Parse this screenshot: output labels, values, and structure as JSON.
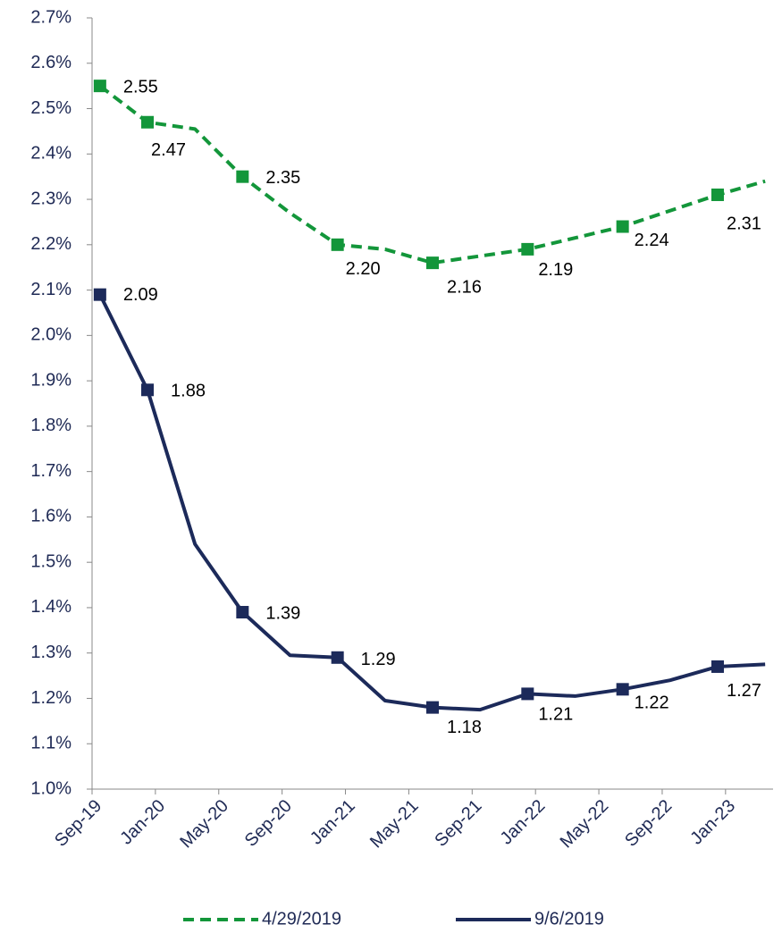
{
  "chart_data": {
    "type": "line",
    "x": [
      "2019-09",
      "2019-12",
      "2020-03",
      "2020-06",
      "2020-09",
      "2020-12",
      "2021-03",
      "2021-06",
      "2021-09",
      "2021-12",
      "2022-03",
      "2022-06",
      "2022-09",
      "2022-12",
      "2023-03"
    ],
    "xlim": [
      "2019-09",
      "2023-04"
    ],
    "xticks": [
      {
        "value": "2019-09",
        "label": "Sep-19"
      },
      {
        "value": "2020-01",
        "label": "Jan-20"
      },
      {
        "value": "2020-05",
        "label": "May-20"
      },
      {
        "value": "2020-09",
        "label": "Sep-20"
      },
      {
        "value": "2021-01",
        "label": "Jan-21"
      },
      {
        "value": "2021-05",
        "label": "May-21"
      },
      {
        "value": "2021-09",
        "label": "Sep-21"
      },
      {
        "value": "2022-01",
        "label": "Jan-22"
      },
      {
        "value": "2022-05",
        "label": "May-22"
      },
      {
        "value": "2022-09",
        "label": "Sep-22"
      },
      {
        "value": "2023-01",
        "label": "Jan-23"
      }
    ],
    "ylim": [
      1.0,
      2.7
    ],
    "yticks": [
      {
        "value": 1.0,
        "label": "1.0%"
      },
      {
        "value": 1.1,
        "label": "1.1%"
      },
      {
        "value": 1.2,
        "label": "1.2%"
      },
      {
        "value": 1.3,
        "label": "1.3%"
      },
      {
        "value": 1.4,
        "label": "1.4%"
      },
      {
        "value": 1.5,
        "label": "1.5%"
      },
      {
        "value": 1.6,
        "label": "1.6%"
      },
      {
        "value": 1.7,
        "label": "1.7%"
      },
      {
        "value": 1.8,
        "label": "1.8%"
      },
      {
        "value": 1.9,
        "label": "1.9%"
      },
      {
        "value": 2.0,
        "label": "2.0%"
      },
      {
        "value": 2.1,
        "label": "2.1%"
      },
      {
        "value": 2.2,
        "label": "2.2%"
      },
      {
        "value": 2.3,
        "label": "2.3%"
      },
      {
        "value": 2.4,
        "label": "2.4%"
      },
      {
        "value": 2.5,
        "label": "2.5%"
      },
      {
        "value": 2.6,
        "label": "2.6%"
      },
      {
        "value": 2.7,
        "label": "2.7%"
      }
    ],
    "legend": "bottom",
    "series": [
      {
        "name": "4/29/2019",
        "color": "#13963a",
        "dashed": true,
        "values": [
          2.55,
          2.47,
          2.455,
          2.35,
          2.27,
          2.2,
          2.19,
          2.16,
          2.175,
          2.19,
          2.215,
          2.24,
          2.275,
          2.31,
          2.34
        ],
        "value_labels": [
          "2.55",
          "2.47",
          null,
          "2.35",
          null,
          "2.20",
          null,
          "2.16",
          null,
          "2.19",
          null,
          "2.24",
          null,
          "2.31",
          null
        ]
      },
      {
        "name": "9/6/2019",
        "color": "#1c2a5a",
        "dashed": false,
        "values": [
          2.09,
          1.88,
          1.54,
          1.39,
          1.295,
          1.29,
          1.195,
          1.18,
          1.175,
          1.21,
          1.205,
          1.22,
          1.24,
          1.27,
          1.275
        ],
        "value_labels": [
          "2.09",
          "1.88",
          null,
          "1.39",
          null,
          "1.29",
          null,
          "1.18",
          null,
          "1.21",
          null,
          "1.22",
          null,
          "1.27",
          null
        ]
      }
    ]
  }
}
